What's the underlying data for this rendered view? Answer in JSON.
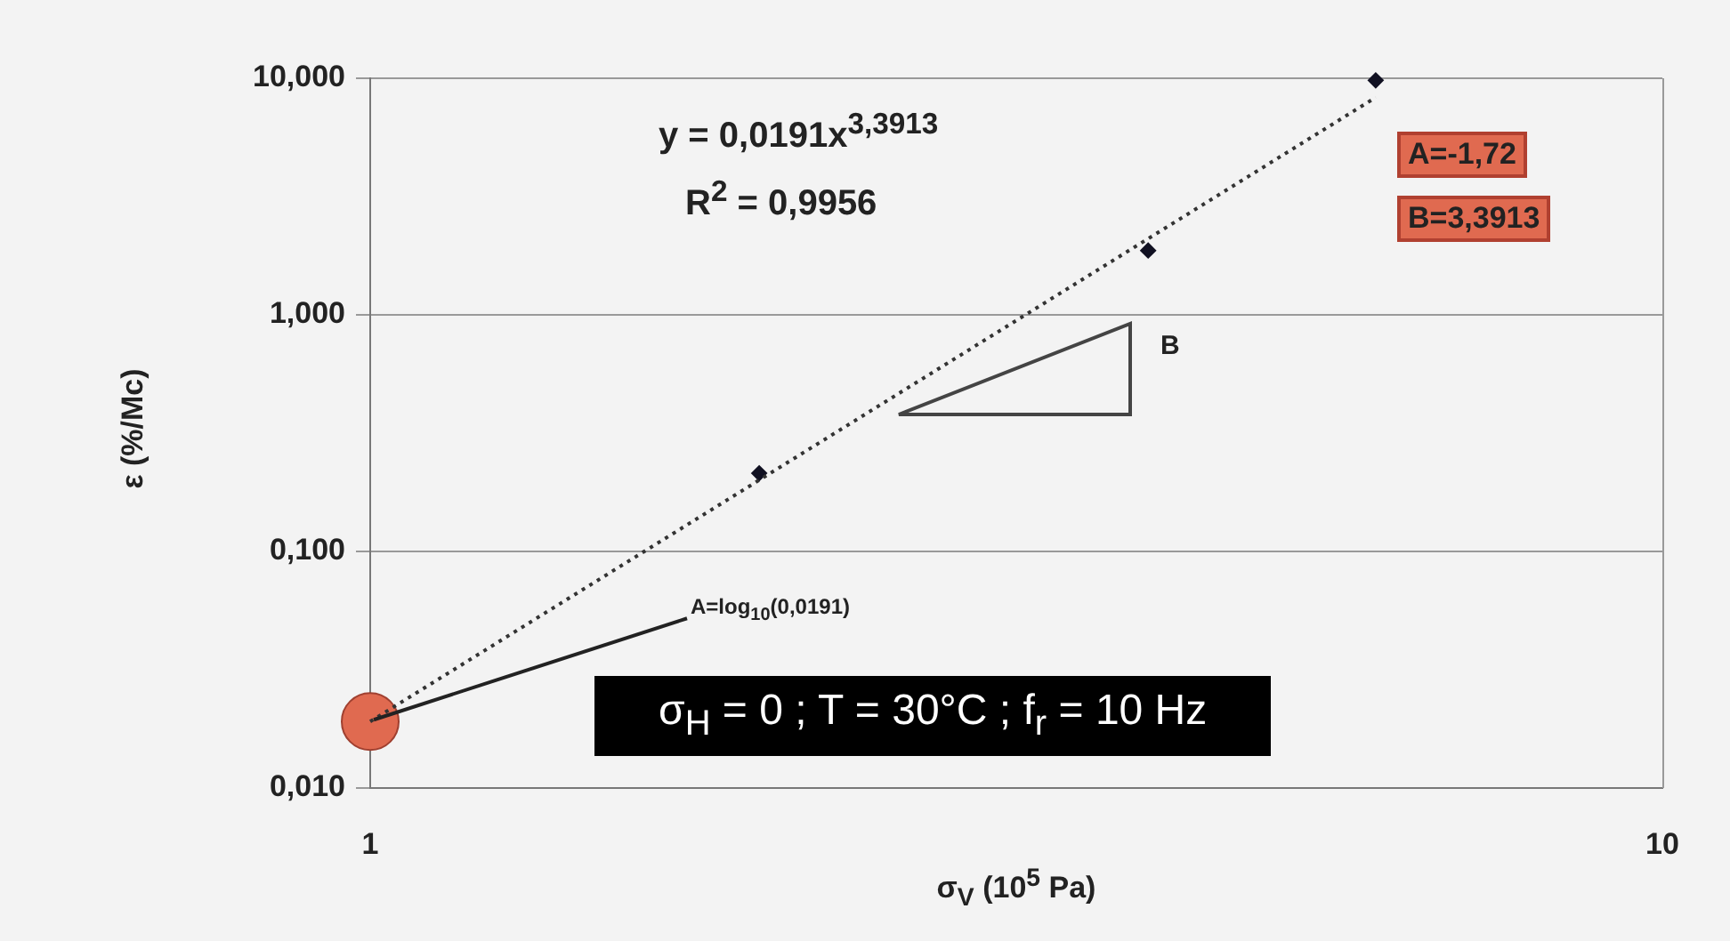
{
  "chart_data": {
    "type": "scatter",
    "xlabel": "σ$_{V}$ (10$^{5}$ Pa)",
    "ylabel": "ε (%/Mc)",
    "log": "xy",
    "xlim": [
      1,
      10
    ],
    "xticks": [
      1,
      10
    ],
    "ylim": [
      0.01,
      10
    ],
    "yticks": [
      {
        "value": 0.01,
        "label": "0,010"
      },
      {
        "value": 0.1,
        "label": "0,100"
      },
      {
        "value": 1,
        "label": "1,000"
      },
      {
        "value": 10,
        "label": "10,000"
      }
    ],
    "grid": "y",
    "legend": false,
    "series": [
      {
        "type": "line",
        "x": [
          1,
          6
        ],
        "values": [
          0.0191,
          8.3
        ],
        "color": "#333333",
        "marker": "none",
        "line_style": "dotted"
      },
      {
        "x": [
          2,
          4,
          6
        ],
        "values": [
          0.214,
          1.87,
          9.8
        ],
        "color": "#111122",
        "marker": "diamond"
      },
      {
        "type": "scatter",
        "x": [
          1
        ],
        "values": [
          0.0191
        ],
        "color": "#e06a50",
        "marker": "circle"
      }
    ],
    "annotations": [
      "y = 0,0191x$^{3,3913}$",
      "R$^{2}$ = 0,9956",
      "A=-1,72",
      "B=3,3913",
      "B",
      {
        "text": "A=log$_{10}$(0,0191)",
        "x": 1,
        "y": 0.0191
      },
      "σ$_{H}$ = 0 ; T = 30°C ; f$_{r}$ = 10 Hz"
    ]
  }
}
